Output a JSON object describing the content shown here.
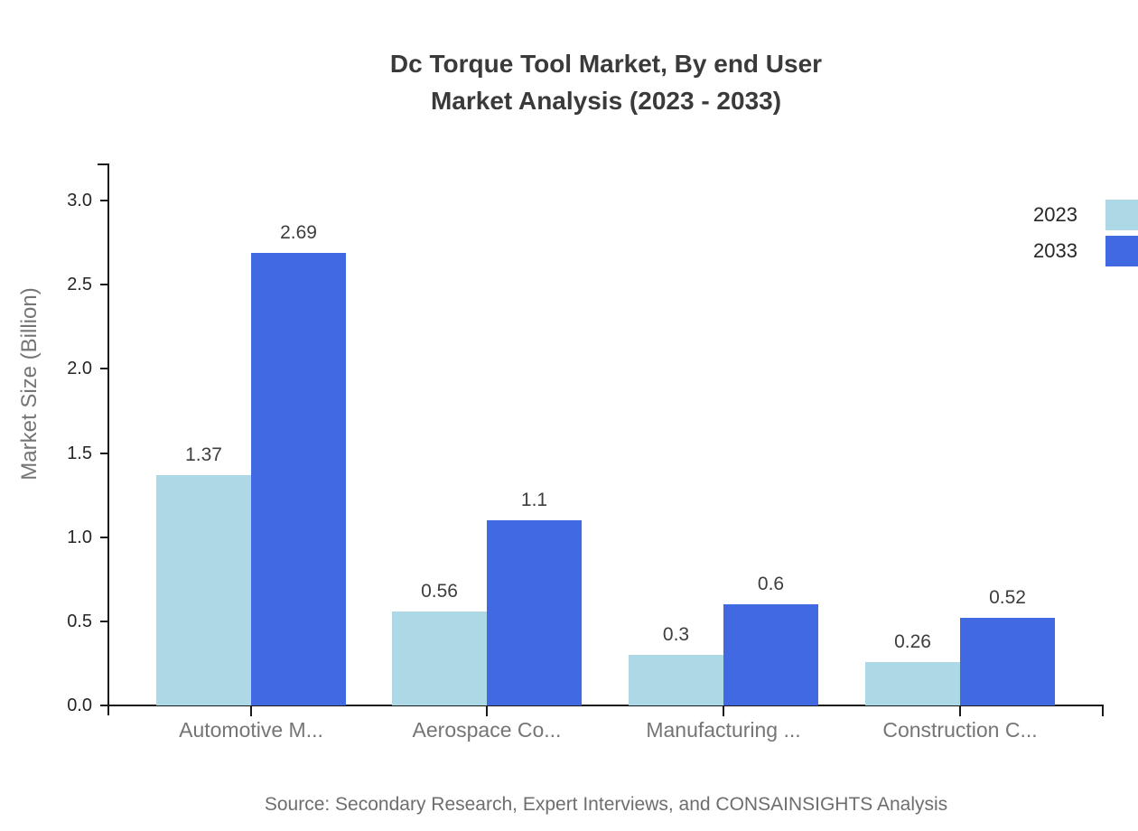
{
  "title": {
    "line1": "Dc Torque Tool Market, By end User",
    "line2": "Market Analysis (2023 - 2033)"
  },
  "legend": [
    {
      "label": "2023",
      "color": "#ADD8E6"
    },
    {
      "label": "2033",
      "color": "#4169E1"
    }
  ],
  "axes": {
    "y_label": "Market Size (Billion)",
    "y_tick_labels": [
      "0.0",
      "0.5",
      "1.0",
      "1.5",
      "2.0",
      "2.5",
      "3.0"
    ]
  },
  "source": "Source: Secondary Research, Expert Interviews, and CONSAINSIGHTS Analysis",
  "chart_data": {
    "type": "bar",
    "title": "Dc Torque Tool Market, By end User Market Analysis (2023 - 2033)",
    "categories": [
      "Automotive M...",
      "Aerospace Co...",
      "Manufacturing ...",
      "Construction C..."
    ],
    "series": [
      {
        "name": "2023",
        "color": "#ADD8E6",
        "values": [
          1.37,
          0.56,
          0.3,
          0.26
        ],
        "labels": [
          "1.37",
          "0.56",
          "0.3",
          "0.26"
        ]
      },
      {
        "name": "2033",
        "color": "#4169E1",
        "values": [
          2.69,
          1.1,
          0.6,
          0.52
        ],
        "labels": [
          "2.69",
          "1.1",
          "0.6",
          "0.52"
        ]
      }
    ],
    "xlabel": "",
    "ylabel": "Market Size (Billion)",
    "ylim": [
      0,
      3.2
    ],
    "yticks": [
      0,
      0.5,
      1,
      1.5,
      2,
      2.5,
      3
    ],
    "grid": false,
    "legend_position": "upper-right-outside",
    "value_labels_shown": true
  }
}
